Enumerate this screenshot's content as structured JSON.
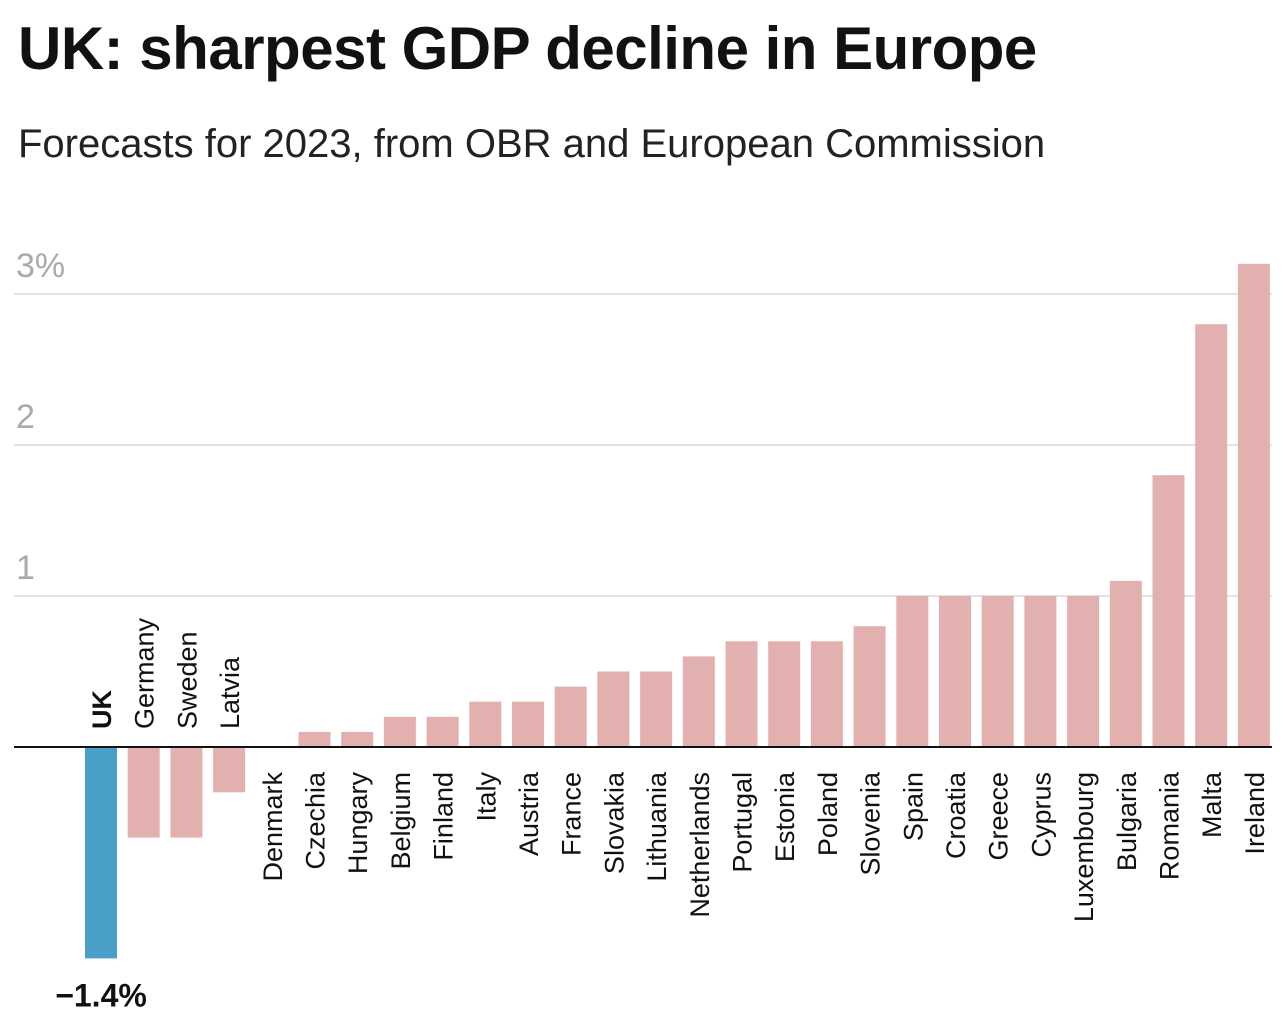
{
  "chart_data": {
    "type": "bar",
    "title": "UK: sharpest GDP decline in Europe",
    "subtitle": "Forecasts for 2023, from OBR and European Commission",
    "ylim": [
      -1.4,
      3.2
    ],
    "yticks": [
      {
        "value": 1,
        "label": "1"
      },
      {
        "value": 2,
        "label": "2"
      },
      {
        "value": 3,
        "label": "3%"
      }
    ],
    "grid": true,
    "categories": [
      "UK",
      "Germany",
      "Sweden",
      "Latvia",
      "Denmark",
      "Czechia",
      "Hungary",
      "Belgium",
      "Finland",
      "Italy",
      "Austria",
      "France",
      "Slovakia",
      "Lithuania",
      "Netherlands",
      "Portugal",
      "Estonia",
      "Poland",
      "Slovenia",
      "Spain",
      "Croatia",
      "Greece",
      "Cyprus",
      "Luxembourg",
      "Bulgaria",
      "Romania",
      "Malta",
      "Ireland"
    ],
    "values": [
      -1.4,
      -0.6,
      -0.6,
      -0.3,
      0.0,
      0.1,
      0.1,
      0.2,
      0.2,
      0.3,
      0.3,
      0.4,
      0.5,
      0.5,
      0.6,
      0.7,
      0.7,
      0.7,
      0.8,
      1.0,
      1.0,
      1.0,
      1.0,
      1.0,
      1.1,
      1.8,
      2.8,
      3.2
    ],
    "highlight": "UK",
    "highlight_label": "−1.4%",
    "colors": {
      "highlight": "#4a9fc9",
      "default": "#e3b0b0",
      "grid": "#e2e2e2",
      "axis": "#111111",
      "tick": "#aaaaaa"
    }
  }
}
